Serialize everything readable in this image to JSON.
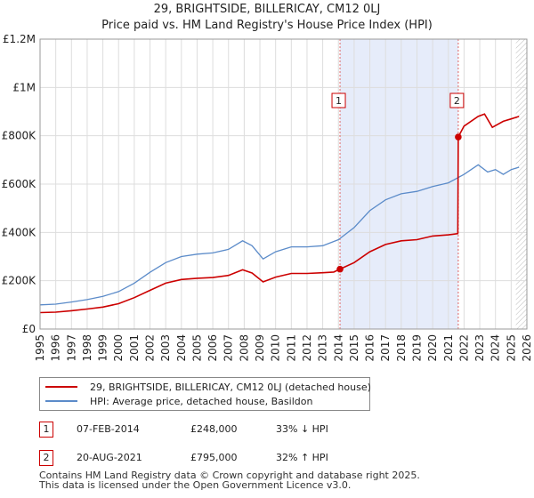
{
  "title": {
    "line1": "29, BRIGHTSIDE, BILLERICAY, CM12 0LJ",
    "line2": "Price paid vs. HM Land Registry's House Price Index (HPI)"
  },
  "colors": {
    "property": "#cc0000",
    "hpi": "#5b8bc9",
    "shade": "#e6ecfa",
    "grid": "#dddddd",
    "marker_line": "#e06666"
  },
  "chart_data": {
    "type": "line",
    "title": "29, BRIGHTSIDE, BILLERICAY, CM12 0LJ — Price paid vs. HM Land Registry's House Price Index (HPI)",
    "xlabel": "",
    "ylabel": "",
    "xlim": [
      1995,
      2026
    ],
    "ylim": [
      0,
      1200000
    ],
    "grid": true,
    "y_ticks": [
      {
        "value": 0,
        "label": "£0"
      },
      {
        "value": 200000,
        "label": "£200K"
      },
      {
        "value": 400000,
        "label": "£400K"
      },
      {
        "value": 600000,
        "label": "£600K"
      },
      {
        "value": 800000,
        "label": "£800K"
      },
      {
        "value": 1000000,
        "label": "£1M"
      },
      {
        "value": 1200000,
        "label": "£1.2M"
      }
    ],
    "x_ticks": [
      "1995",
      "1996",
      "1997",
      "1998",
      "1999",
      "2000",
      "2001",
      "2002",
      "2003",
      "2004",
      "2005",
      "2006",
      "2007",
      "2008",
      "2009",
      "2010",
      "2011",
      "2012",
      "2013",
      "2014",
      "2015",
      "2016",
      "2017",
      "2018",
      "2019",
      "2020",
      "2021",
      "2022",
      "2023",
      "2024",
      "2025",
      "2026"
    ],
    "shaded_period": [
      2014.1,
      2021.63
    ],
    "hatch_from": 2025.3,
    "series": [
      {
        "name": "29, BRIGHTSIDE, BILLERICAY, CM12 0LJ (detached house)",
        "x": [
          1995,
          1996,
          1997,
          1998,
          1999,
          2000,
          2001,
          2002,
          2003,
          2004,
          2005,
          2006,
          2007,
          2007.9,
          2008.5,
          2009.2,
          2010,
          2011,
          2012,
          2013,
          2013.7,
          2014.1,
          2015,
          2016,
          2017,
          2018,
          2019,
          2020,
          2021,
          2021.6,
          2021.63,
          2022,
          2022.9,
          2023.3,
          2023.8,
          2024.5,
          2025,
          2025.5
        ],
        "y": [
          68000,
          70000,
          76000,
          83000,
          91000,
          105000,
          130000,
          160000,
          190000,
          205000,
          210000,
          213000,
          222000,
          245000,
          232000,
          195000,
          215000,
          230000,
          230000,
          233000,
          236000,
          248000,
          275000,
          320000,
          350000,
          365000,
          370000,
          385000,
          390000,
          395000,
          795000,
          840000,
          880000,
          890000,
          835000,
          860000,
          870000,
          880000
        ]
      },
      {
        "name": "HPI: Average price, detached house, Basildon",
        "x": [
          1995,
          1996,
          1997,
          1998,
          1999,
          2000,
          2001,
          2002,
          2003,
          2004,
          2005,
          2006,
          2007,
          2007.9,
          2008.5,
          2009.2,
          2010,
          2011,
          2012,
          2013,
          2014,
          2015,
          2016,
          2017,
          2018,
          2019,
          2020,
          2021,
          2022,
          2022.9,
          2023.5,
          2024,
          2024.5,
          2025,
          2025.5
        ],
        "y": [
          100000,
          103000,
          112000,
          122000,
          135000,
          155000,
          190000,
          235000,
          275000,
          300000,
          310000,
          315000,
          330000,
          365000,
          345000,
          290000,
          320000,
          340000,
          340000,
          345000,
          370000,
          420000,
          490000,
          535000,
          560000,
          570000,
          590000,
          605000,
          640000,
          680000,
          650000,
          660000,
          640000,
          660000,
          670000
        ]
      }
    ],
    "annotations": [
      {
        "label": "1",
        "x": 2014.1,
        "y": 248000
      },
      {
        "label": "2",
        "x": 2021.63,
        "y": 795000
      }
    ]
  },
  "legend": {
    "property_label": "29, BRIGHTSIDE, BILLERICAY, CM12 0LJ (detached house)",
    "hpi_label": "HPI: Average price, detached house, Basildon"
  },
  "transactions": [
    {
      "badge": "1",
      "date": "07-FEB-2014",
      "price": "£248,000",
      "hpi": "33% ↓ HPI"
    },
    {
      "badge": "2",
      "date": "20-AUG-2021",
      "price": "£795,000",
      "hpi": "32% ↑ HPI"
    }
  ],
  "footer": {
    "line1": "Contains HM Land Registry data © Crown copyright and database right 2025.",
    "line2": "This data is licensed under the Open Government Licence v3.0."
  }
}
